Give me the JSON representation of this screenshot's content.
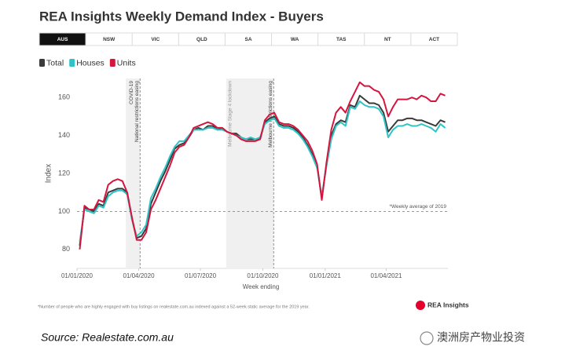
{
  "chart_data": {
    "type": "line",
    "title": "REA Insights Weekly Demand Index - Buyers",
    "tabs": [
      "AUS",
      "NSW",
      "VIC",
      "QLD",
      "SA",
      "WA",
      "TAS",
      "NT",
      "ACT"
    ],
    "selected_tab": 0,
    "legend": "top-left",
    "y_label": "Index",
    "x_label": "Week ending",
    "grid": false,
    "x": [
      "05/01/2020",
      "12/01/2020",
      "19/01/2020",
      "26/01/2020",
      "02/02/2020",
      "09/02/2020",
      "16/02/2020",
      "23/02/2020",
      "01/03/2020",
      "08/03/2020",
      "15/03/2020",
      "22/03/2020",
      "29/03/2020",
      "05/04/2020",
      "12/04/2020",
      "19/04/2020",
      "26/04/2020",
      "03/05/2020",
      "10/05/2020",
      "17/05/2020",
      "24/05/2020",
      "31/05/2020",
      "07/06/2020",
      "14/06/2020",
      "21/06/2020",
      "28/06/2020",
      "05/07/2020",
      "12/07/2020",
      "19/07/2020",
      "26/07/2020",
      "02/08/2020",
      "09/08/2020",
      "16/08/2020",
      "23/08/2020",
      "30/08/2020",
      "06/09/2020",
      "13/09/2020",
      "20/09/2020",
      "27/09/2020",
      "04/10/2020",
      "11/10/2020",
      "18/10/2020",
      "25/10/2020",
      "01/11/2020",
      "08/11/2020",
      "15/11/2020",
      "22/11/2020",
      "29/11/2020",
      "06/12/2020",
      "13/12/2020",
      "20/12/2020",
      "27/12/2020",
      "03/01/2021",
      "10/01/2021",
      "17/01/2021",
      "24/01/2021",
      "31/01/2021",
      "07/02/2021",
      "14/02/2021",
      "21/02/2021",
      "28/02/2021",
      "07/03/2021",
      "14/03/2021",
      "21/03/2021",
      "28/03/2021",
      "04/04/2021",
      "11/04/2021",
      "18/04/2021",
      "25/04/2021",
      "02/05/2021",
      "09/05/2021",
      "16/05/2021",
      "23/05/2021",
      "30/05/2021",
      "06/06/2021",
      "13/06/2021",
      "20/06/2021",
      "27/06/2021"
    ],
    "series": [
      {
        "name": "Total",
        "color": "#3a3a3a",
        "values": [
          82,
          102,
          101,
          100,
          104,
          103,
          110,
          111,
          112,
          112,
          110,
          96,
          86,
          87,
          91,
          104,
          110,
          116,
          121,
          127,
          133,
          135,
          136,
          139,
          143,
          144,
          143,
          145,
          145,
          143,
          144,
          142,
          141,
          141,
          139,
          138,
          138,
          138,
          138,
          147,
          149,
          150,
          146,
          145,
          145,
          144,
          142,
          139,
          135,
          130,
          124,
          107,
          125,
          140,
          146,
          148,
          147,
          156,
          155,
          161,
          159,
          157,
          157,
          156,
          152,
          142,
          145,
          148,
          148,
          149,
          149,
          148,
          148,
          147,
          146,
          145,
          148,
          147
        ]
      },
      {
        "name": "Houses",
        "color": "#2ec4c6",
        "values": [
          84,
          101,
          100,
          99,
          103,
          102,
          108,
          110,
          111,
          111,
          109,
          96,
          87,
          89,
          93,
          107,
          112,
          118,
          123,
          129,
          134,
          137,
          137,
          140,
          143,
          143,
          143,
          144,
          144,
          143,
          143,
          142,
          141,
          140,
          139,
          138,
          139,
          138,
          139,
          146,
          148,
          149,
          145,
          144,
          144,
          143,
          141,
          138,
          134,
          129,
          123,
          108,
          124,
          138,
          145,
          147,
          145,
          155,
          154,
          158,
          156,
          155,
          155,
          154,
          150,
          139,
          143,
          145,
          145,
          146,
          145,
          145,
          146,
          145,
          144,
          142,
          146,
          144
        ]
      },
      {
        "name": "Units",
        "color": "#d4163f",
        "values": [
          80,
          103,
          101,
          101,
          106,
          105,
          114,
          116,
          117,
          116,
          110,
          97,
          85,
          85,
          89,
          101,
          106,
          112,
          118,
          124,
          131,
          134,
          135,
          139,
          144,
          145,
          146,
          147,
          146,
          144,
          144,
          142,
          141,
          140,
          138,
          137,
          137,
          137,
          138,
          148,
          151,
          152,
          147,
          146,
          146,
          145,
          143,
          140,
          137,
          132,
          125,
          106,
          126,
          143,
          152,
          155,
          152,
          158,
          163,
          168,
          166,
          166,
          164,
          163,
          159,
          150,
          155,
          159,
          159,
          159,
          160,
          159,
          161,
          160,
          158,
          158,
          162,
          161
        ]
      }
    ],
    "xlim": [
      "01/01/2020",
      "01/07/2021"
    ],
    "xticks": [
      "01/01/2020",
      "01/04/2020",
      "01/07/2020",
      "01/10/2020",
      "01/01/2021",
      "01/04/2021"
    ],
    "ylim": [
      70,
      170
    ],
    "yticks": [
      80,
      100,
      120,
      140,
      160
    ],
    "shaded": [
      {
        "start": "13/03/2020",
        "end": "03/04/2020"
      },
      {
        "start": "08/08/2020",
        "end": "17/10/2020",
        "label": "Melbourne Stage 4 lockdown"
      }
    ],
    "vlines": [
      {
        "x": "03/04/2020",
        "labels": [
          "COVID-19",
          "National restrictions easing"
        ]
      },
      {
        "x": "17/10/2020",
        "labels": [
          "Melbourne restrictions easing"
        ]
      }
    ],
    "reference": {
      "value": 100,
      "label": "*Weekly average of 2019"
    },
    "footnote": "*Number of people who are highly engaged with buy listings on realestate.com.au indexed against a 52-week static average for the 2019 year.",
    "logo": "REA Insights",
    "source": "Source: Realestate.com.au",
    "watermark": "澳洲房产物业投资"
  }
}
